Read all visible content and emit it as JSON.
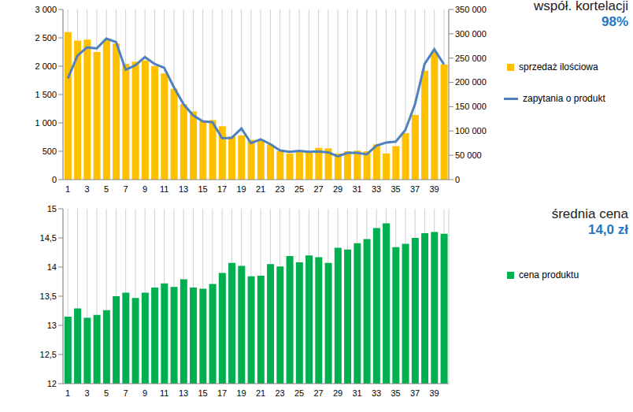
{
  "chart_data": [
    {
      "type": "bar",
      "categories": [
        "1",
        null,
        "3",
        null,
        "5",
        null,
        "7",
        null,
        "9",
        null,
        "11",
        null,
        "13",
        null,
        "15",
        null,
        "17",
        null,
        "19",
        null,
        "21",
        null,
        "23",
        null,
        "25",
        null,
        "27",
        null,
        "29",
        null,
        "31",
        null,
        "33",
        null,
        "35",
        null,
        "37",
        null,
        "39",
        null
      ],
      "series": [
        {
          "name": "sprzedaż ilościowa",
          "type": "bar",
          "color": "#FFC000",
          "values": [
            2600,
            2450,
            2470,
            2250,
            2470,
            2400,
            2040,
            2080,
            2100,
            2000,
            1870,
            1600,
            1330,
            1200,
            1030,
            1050,
            940,
            760,
            780,
            700,
            700,
            620,
            500,
            460,
            500,
            490,
            560,
            550,
            460,
            500,
            510,
            500,
            620,
            460,
            590,
            820,
            1140,
            1920,
            2250,
            2030
          ]
        },
        {
          "name": "zapytania o produkt",
          "type": "line",
          "axis": "y2",
          "color": "#4F81BD",
          "values": [
            208000,
            255000,
            272000,
            270000,
            290000,
            283000,
            226000,
            235000,
            252000,
            238000,
            230000,
            190000,
            155000,
            132000,
            120000,
            118000,
            85000,
            86000,
            105000,
            75000,
            83000,
            73000,
            60000,
            57000,
            59000,
            57000,
            58000,
            56000,
            48000,
            55000,
            55000,
            52000,
            70000,
            76000,
            78000,
            102000,
            155000,
            238000,
            268000,
            237000
          ]
        }
      ],
      "ylim": [
        0,
        3000
      ],
      "yticks": [
        0,
        500,
        {
          "value": 1000,
          "label": "1 000"
        },
        {
          "value": 1500,
          "label": "1 500"
        },
        {
          "value": 2000,
          "label": "2 000"
        },
        {
          "value": 2500,
          "label": "2 500"
        },
        {
          "value": 3000,
          "label": "3 000"
        }
      ],
      "y2lim": [
        0,
        350000
      ],
      "y2ticks": [
        0,
        {
          "value": 50000,
          "label": "50 000"
        },
        {
          "value": 100000,
          "label": "100 000"
        },
        {
          "value": 150000,
          "label": "150 000"
        },
        {
          "value": 200000,
          "label": "200 000"
        },
        {
          "value": 250000,
          "label": "250 000"
        },
        {
          "value": 300000,
          "label": "300 000"
        },
        {
          "value": 350000,
          "label": "350 000"
        }
      ],
      "annotations": [
        "współ. kortelacji",
        "98%"
      ],
      "grid": true,
      "legend": "right"
    },
    {
      "type": "bar",
      "categories": [
        "1",
        null,
        "3",
        null,
        "5",
        null,
        "7",
        null,
        "9",
        null,
        "11",
        null,
        "13",
        null,
        "15",
        null,
        "17",
        null,
        "19",
        null,
        "21",
        null,
        "23",
        null,
        "25",
        null,
        "27",
        null,
        "29",
        null,
        "31",
        null,
        "33",
        null,
        "35",
        null,
        "37",
        null,
        "39",
        null
      ],
      "series": [
        {
          "name": "cena produktu",
          "color": "#00B050",
          "values": [
            13.15,
            13.29,
            13.13,
            13.18,
            13.26,
            13.5,
            13.56,
            13.47,
            13.56,
            13.65,
            13.72,
            13.66,
            13.79,
            13.65,
            13.63,
            13.71,
            13.9,
            14.07,
            14.02,
            13.84,
            13.85,
            14.05,
            14.01,
            14.19,
            14.08,
            14.2,
            14.17,
            14.07,
            14.33,
            14.3,
            14.41,
            14.48,
            14.67,
            14.75,
            14.34,
            14.4,
            14.5,
            14.58,
            14.6,
            14.57
          ]
        }
      ],
      "ylim": [
        12,
        15
      ],
      "yticks": [
        12,
        {
          "value": 12.5,
          "label": "12,5"
        },
        13,
        {
          "value": 13.5,
          "label": "13,5"
        },
        14,
        {
          "value": 14.5,
          "label": "14,5"
        },
        15
      ],
      "annotations": [
        "średnia cena",
        "14,0 zł"
      ],
      "grid": true,
      "legend": "right"
    }
  ]
}
